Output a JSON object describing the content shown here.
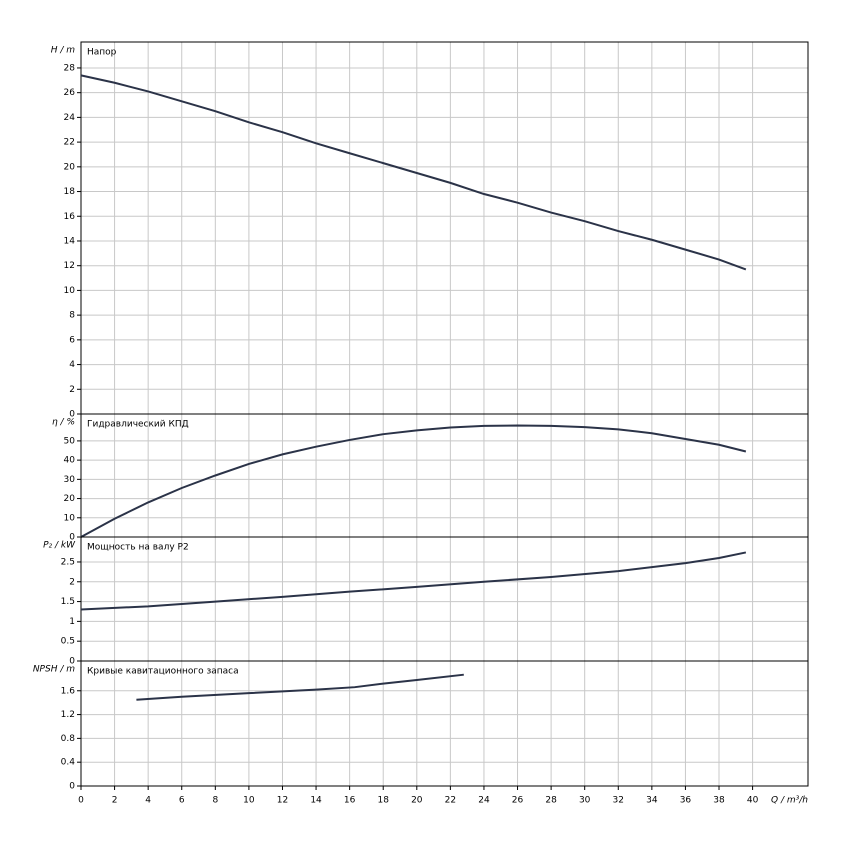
{
  "chart_data": [
    {
      "type": "line",
      "title": "Напор",
      "ylabel": "H / m",
      "x": [
        0,
        2,
        4,
        6,
        8,
        10,
        12,
        14,
        16,
        18,
        20,
        22,
        24,
        26,
        28,
        30,
        32,
        34,
        36,
        38,
        39.6
      ],
      "series": [
        {
          "color": "#2b3348",
          "values": [
            27.4,
            26.8,
            26.1,
            25.3,
            24.5,
            23.6,
            22.8,
            21.9,
            21.1,
            20.3,
            19.5,
            18.7,
            17.8,
            17.1,
            16.3,
            15.6,
            14.8,
            14.1,
            13.3,
            12.5,
            11.7
          ]
        }
      ],
      "ylim": [
        0,
        30.1
      ],
      "yticks": [
        0,
        2,
        4,
        6,
        8,
        10,
        12,
        14,
        16,
        18,
        20,
        22,
        24,
        26,
        28
      ],
      "grid": true
    },
    {
      "type": "line",
      "title": "Гидравлический КПД",
      "ylabel": "η / %",
      "x": [
        0,
        2,
        4,
        6,
        8,
        10,
        12,
        14,
        16,
        18,
        20,
        22,
        24,
        26,
        28,
        30,
        32,
        34,
        36,
        38,
        39.6
      ],
      "series": [
        {
          "color": "#2b3348",
          "values": [
            0,
            9.5,
            18,
            25.5,
            32,
            38,
            43,
            47,
            50.5,
            53.5,
            55.5,
            57,
            57.8,
            58,
            57.8,
            57.2,
            56,
            54,
            51,
            48,
            44.5
          ]
        }
      ],
      "ylim": [
        0,
        64
      ],
      "yticks": [
        0,
        10,
        20,
        30,
        40,
        50
      ],
      "grid": true
    },
    {
      "type": "line",
      "title": "Мощность на валу P2",
      "ylabel": "P₂ / kW",
      "x": [
        0,
        4,
        8,
        12,
        16,
        20,
        24,
        28,
        32,
        36,
        38,
        39.6
      ],
      "series": [
        {
          "color": "#2b3348",
          "values": [
            1.3,
            1.38,
            1.5,
            1.62,
            1.75,
            1.87,
            2.0,
            2.12,
            2.27,
            2.47,
            2.6,
            2.74
          ]
        }
      ],
      "ylim": [
        0,
        3.13
      ],
      "yticks": [
        0,
        0.5,
        1,
        1.5,
        2,
        2.5
      ],
      "grid": true
    },
    {
      "type": "line",
      "title": "Кривые кавитационного запаса",
      "ylabel": "NPSH / m",
      "xlabel": "Q / m³/h",
      "x": [
        3.3,
        6,
        10,
        14,
        16.3,
        18,
        20,
        22.8
      ],
      "series": [
        {
          "color": "#2b3348",
          "values": [
            1.45,
            1.5,
            1.56,
            1.62,
            1.66,
            1.72,
            1.78,
            1.87
          ]
        }
      ],
      "ylim": [
        0,
        2.1
      ],
      "yticks": [
        0,
        0.4,
        0.8,
        1.2,
        1.6
      ],
      "grid": true,
      "xlim": [
        0,
        43.3
      ],
      "xticks": [
        0,
        2,
        4,
        6,
        8,
        10,
        12,
        14,
        16,
        18,
        20,
        22,
        24,
        26,
        28,
        30,
        32,
        34,
        36,
        38,
        40
      ]
    }
  ]
}
